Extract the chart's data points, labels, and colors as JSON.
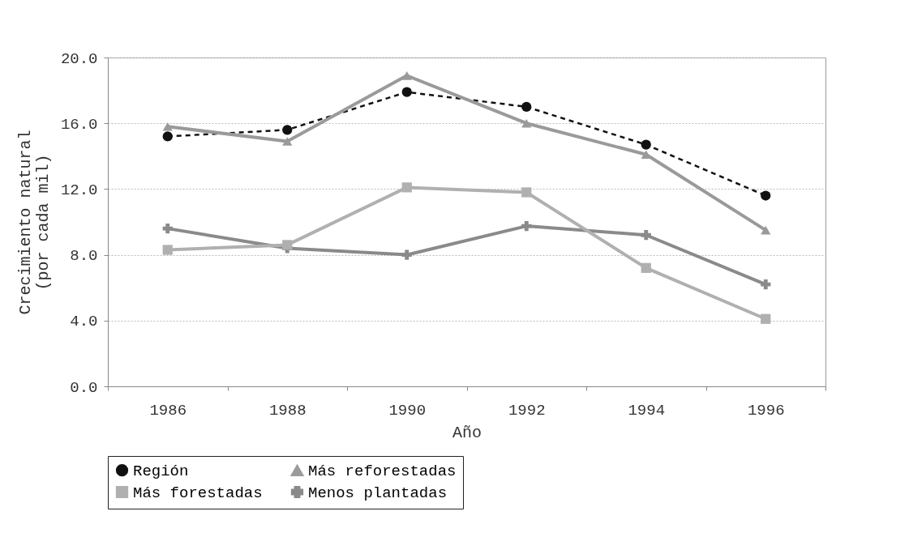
{
  "chart_data": {
    "type": "line",
    "xlabel": "Año",
    "ylabel": "Crecimiento natural\n(por cada mil)",
    "categories": [
      "1986",
      "1988",
      "1990",
      "1992",
      "1994",
      "1996"
    ],
    "series": [
      {
        "name": "Región",
        "color": "#111111",
        "marker": "circle",
        "line_style": "dashed",
        "values": [
          15.2,
          15.6,
          17.9,
          17.0,
          14.7,
          11.6
        ]
      },
      {
        "name": "Más reforestadas",
        "color": "#9a9a9a",
        "marker": "triangle",
        "line_style": "solid",
        "values": [
          15.8,
          14.9,
          18.9,
          16.0,
          14.1,
          9.5
        ]
      },
      {
        "name": "Más forestadas",
        "color": "#b0b0b0",
        "marker": "square",
        "line_style": "solid",
        "values": [
          8.3,
          8.6,
          12.1,
          11.8,
          7.2,
          4.1
        ]
      },
      {
        "name": "Menos plantadas",
        "color": "#8a8a8a",
        "marker": "cross",
        "line_style": "solid",
        "values": [
          9.6,
          8.4,
          8.0,
          9.75,
          9.2,
          6.2
        ]
      }
    ],
    "ylim": [
      0,
      20
    ],
    "yticks": [
      {
        "value": 0,
        "label": "0.0"
      },
      {
        "value": 4,
        "label": "4.0"
      },
      {
        "value": 8,
        "label": "8.0"
      },
      {
        "value": 12,
        "label": "12.0"
      },
      {
        "value": 16,
        "label": "16.0"
      },
      {
        "value": 20,
        "label": "20.0"
      }
    ],
    "grid": "y",
    "legend": "bottom"
  }
}
